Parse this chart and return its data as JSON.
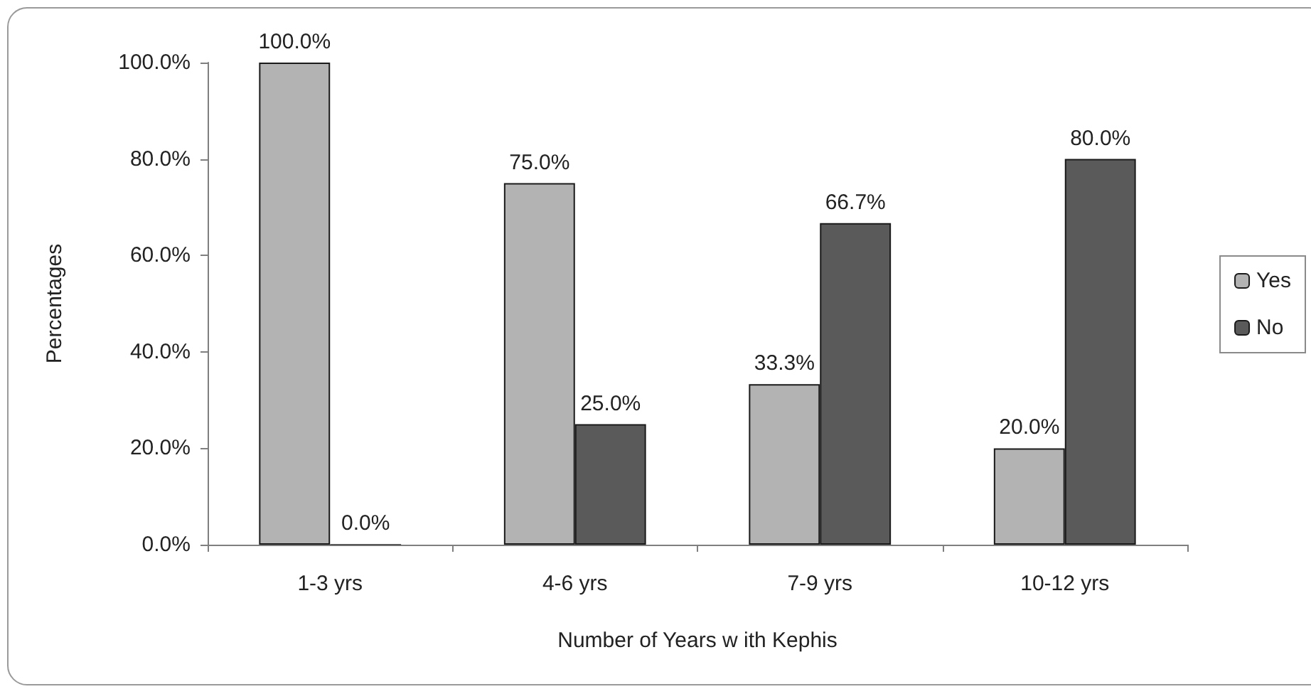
{
  "chart_data": {
    "type": "bar",
    "xlabel": "Number of Years w ith Kephis",
    "ylabel": "Percentages",
    "categories": [
      "1-3 yrs",
      "4-6 yrs",
      "7-9 yrs",
      "10-12 yrs"
    ],
    "series": [
      {
        "name": "Yes",
        "color": "#b3b3b3",
        "values": [
          100,
          75,
          33.3,
          20
        ],
        "value_labels": [
          "100.0%",
          "75.0%",
          "33.3%",
          "20.0%"
        ]
      },
      {
        "name": "No",
        "color": "#5a5a5a",
        "values": [
          0,
          25,
          66.7,
          80
        ],
        "value_labels": [
          "0.0%",
          "25.0%",
          "66.7%",
          "80.0%"
        ]
      }
    ],
    "ylim": [
      0,
      100
    ],
    "yticks": [
      {
        "value": 0,
        "label": "0.0%"
      },
      {
        "value": 20,
        "label": "20.0%"
      },
      {
        "value": 40,
        "label": "40.0%"
      },
      {
        "value": 60,
        "label": "60.0%"
      },
      {
        "value": 80,
        "label": "80.0%"
      },
      {
        "value": 100,
        "label": "100.0%"
      }
    ],
    "legend": "right"
  }
}
